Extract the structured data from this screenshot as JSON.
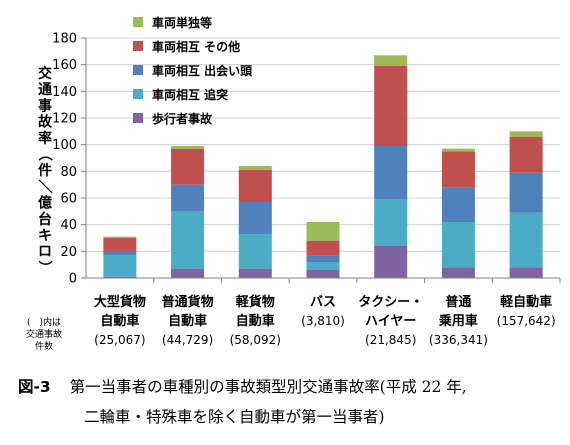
{
  "chart_data": {
    "type": "bar",
    "stacked": true,
    "ylabel": "交通事故率（件／億台キロ）",
    "ylim": [
      0,
      180
    ],
    "yticks": [
      0,
      20,
      40,
      60,
      80,
      100,
      120,
      140,
      160,
      180
    ],
    "grid": true,
    "legend_position": "top-left",
    "categories": [
      {
        "lines": [
          "大型貨物",
          "自動車"
        ],
        "count": "(25,067)"
      },
      {
        "lines": [
          "普通貨物",
          "自動車"
        ],
        "count": "(44,729)"
      },
      {
        "lines": [
          "軽貨物",
          "自動車"
        ],
        "count": "(58,092)"
      },
      {
        "lines": [
          "バス"
        ],
        "count": "(3,810)"
      },
      {
        "lines": [
          "タクシー・",
          "ハイヤー"
        ],
        "count": "(21,845)"
      },
      {
        "lines": [
          "普通",
          "乗用車"
        ],
        "count": "(336,341)"
      },
      {
        "lines": [
          "軽自動車"
        ],
        "count": "(157,642)"
      }
    ],
    "series": [
      {
        "name": "歩行者事故",
        "color": "#8064a2",
        "values": [
          1,
          7,
          7,
          6,
          24,
          8,
          8
        ]
      },
      {
        "name": "車両相互 追突",
        "color": "#4bacc6",
        "values": [
          16,
          43,
          26,
          6,
          35,
          34,
          41
        ]
      },
      {
        "name": "車両相互 出会い頭",
        "color": "#4f81bd",
        "values": [
          3,
          20,
          24,
          5,
          40,
          26,
          30
        ]
      },
      {
        "name": "車両相互 その他",
        "color": "#c0504d",
        "values": [
          10,
          27,
          24,
          11,
          60,
          27,
          27
        ]
      },
      {
        "name": "車両単独等",
        "color": "#9bbb59",
        "values": [
          1,
          2,
          3,
          14,
          8,
          2,
          4
        ]
      }
    ],
    "legend_order": [
      "車両単独等",
      "車両相互 その他",
      "車両相互 出会い頭",
      "車両相互 追突",
      "歩行者事故"
    ],
    "count_note": [
      "(　)内は",
      "交通事故",
      "件数"
    ]
  },
  "caption": {
    "figure_label": "図-3",
    "line1": "第一当事者の車種別の事故類型別交通事故率(平成 22 年,",
    "line2": "二輪車・特殊車を除く自動車が第一当事者)"
  }
}
